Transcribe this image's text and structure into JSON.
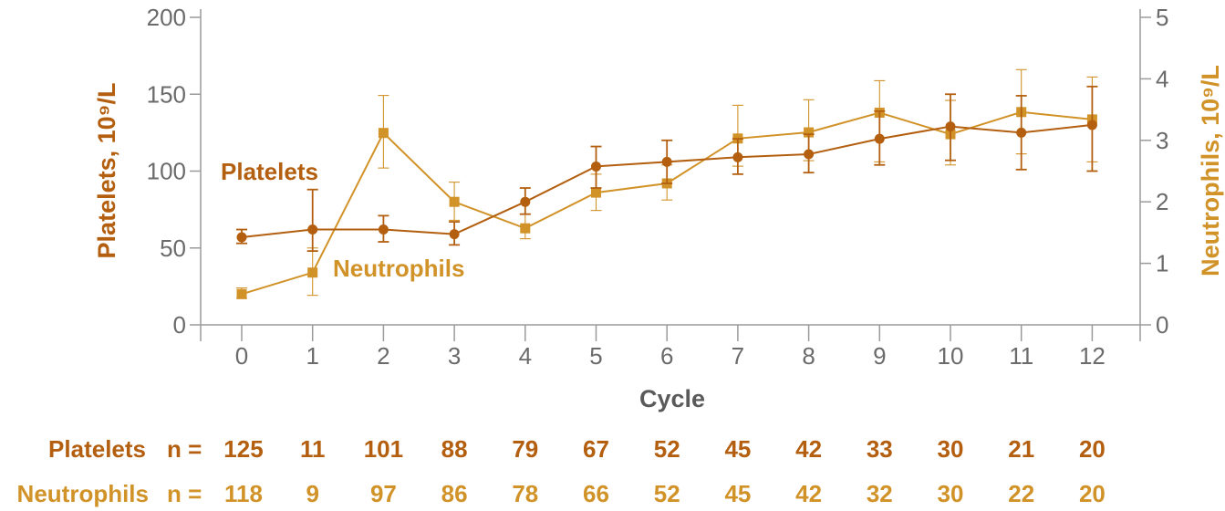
{
  "chart_data": {
    "type": "line",
    "x": [
      0,
      1,
      2,
      3,
      4,
      5,
      6,
      7,
      8,
      9,
      10,
      11,
      12
    ],
    "xlabel": "Cycle",
    "ylabel_left": "Platelets, 10⁹/L",
    "ylabel_right": "Neutrophils, 10⁹/L",
    "ylim_left": [
      0,
      200
    ],
    "yticks_left": [
      "0",
      "50",
      "100",
      "150",
      "200"
    ],
    "ylim_right": [
      0,
      5
    ],
    "yticks_right": [
      "0",
      "1",
      "2",
      "3",
      "4",
      "5"
    ],
    "xticks": [
      "0",
      "1",
      "2",
      "3",
      "4",
      "5",
      "6",
      "7",
      "8",
      "9",
      "10",
      "11",
      "12"
    ],
    "grid": false,
    "series": [
      {
        "name": "Platelets",
        "axis": "left",
        "marker": "circle",
        "color": "#b35f0f",
        "values": [
          57,
          62,
          62,
          59,
          80,
          103,
          106,
          109,
          111,
          121,
          129,
          125,
          130
        ],
        "err_low": [
          53,
          48,
          54,
          52,
          72,
          89,
          92,
          98,
          99,
          104,
          107,
          101,
          100
        ],
        "err_high": [
          62,
          88,
          71,
          67,
          89,
          116,
          120,
          121,
          124,
          139,
          150,
          149,
          155
        ]
      },
      {
        "name": "Neutrophils",
        "axis": "right",
        "marker": "square",
        "color": "#d19228",
        "values": [
          0.5,
          0.85,
          3.12,
          2.0,
          1.57,
          2.15,
          2.3,
          3.03,
          3.13,
          3.45,
          3.1,
          3.46,
          3.34
        ],
        "err_low": [
          0.43,
          0.48,
          2.55,
          1.7,
          1.4,
          1.86,
          2.03,
          2.58,
          2.67,
          2.65,
          2.6,
          2.78,
          2.65
        ],
        "err_high": [
          0.6,
          1.25,
          3.73,
          2.32,
          1.8,
          2.45,
          2.6,
          3.57,
          3.66,
          3.97,
          3.65,
          4.15,
          4.03
        ]
      }
    ]
  },
  "counts": {
    "platelets_label": "Platelets",
    "neutrophils_label": "Neutrophils",
    "prefix": "n =",
    "platelets": [
      "125",
      "11",
      "101",
      "88",
      "79",
      "67",
      "52",
      "45",
      "42",
      "33",
      "30",
      "21",
      "20"
    ],
    "neutrophils": [
      "118",
      "9",
      "97",
      "86",
      "78",
      "66",
      "52",
      "45",
      "42",
      "32",
      "30",
      "22",
      "20"
    ]
  }
}
